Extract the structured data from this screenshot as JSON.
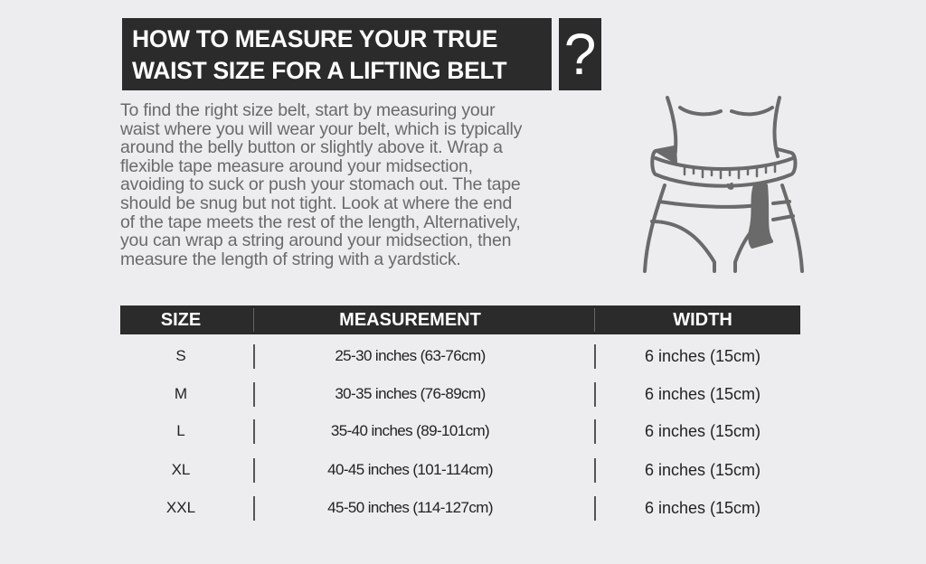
{
  "title": {
    "lines": [
      "HOW TO MEASURE YOUR TRUE",
      "WAIST SIZE FOR A LIFTING BELT"
    ],
    "question_mark": "?"
  },
  "intro": {
    "lines": [
      "To find the right size belt, start by measuring your",
      "waist where you will wear your belt, which is typically",
      "around the belly button or slightly above it. Wrap a",
      "flexible tape measure around your midsection,",
      "avoiding to suck or push your stomach out. The tape",
      "should be snug but not tight. Look at where the end",
      "of the tape meets the rest of the length, Alternatively,",
      "you can wrap a string around your midsection, then",
      "measure the length of string with a yardstick."
    ]
  },
  "illustration": {
    "icon": "waist-measuring-tape-icon",
    "color": "#6a6a6a"
  },
  "table": {
    "headers": [
      "SIZE",
      "MEASUREMENT",
      "WIDTH"
    ],
    "rows": [
      [
        "S",
        "25-30 inches (63-76cm)",
        "6 inches (15cm)"
      ],
      [
        "M",
        "30-35 inches (76-89cm)",
        "6 inches (15cm)"
      ],
      [
        "L",
        "35-40 inches (89-101cm)",
        "6 inches (15cm)"
      ],
      [
        "XL",
        "40-45 inches (101-114cm)",
        "6 inches (15cm)"
      ],
      [
        "XXL",
        "45-50 inches (114-127cm)",
        "6 inches (15cm)"
      ]
    ]
  },
  "colors": {
    "background": "#ededef",
    "dark": "#2b2b2b",
    "text_gray": "#6a6a6a"
  }
}
